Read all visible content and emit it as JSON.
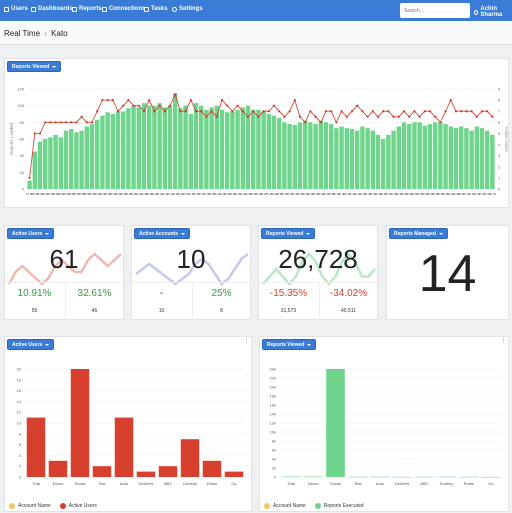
{
  "nav": {
    "items": [
      {
        "label": "Users",
        "icon": "users-icon"
      },
      {
        "label": "Dashboards",
        "icon": "dashboard-icon"
      },
      {
        "label": "Reports",
        "icon": "reports-icon"
      },
      {
        "label": "Connections",
        "icon": "connections-icon"
      },
      {
        "label": "Tasks",
        "icon": "tasks-icon"
      },
      {
        "label": "Settings",
        "icon": "gear-icon"
      }
    ],
    "search_placeholder": "Search...",
    "user_name": "Achin Sharma"
  },
  "breadcrumb": {
    "root": "Real Time",
    "separator": "›",
    "current": "Kato"
  },
  "colors": {
    "accent": "#3a7bd5",
    "green": "#6fd48c",
    "red": "#d7402f",
    "line_red": "#d23a2a"
  },
  "top_panel": {
    "button": "Reports Viewed",
    "chart_data": {
      "type": "bar",
      "ylabel_left": "Reports Loaded",
      "ylabel_right": "Active Users",
      "ylim_left": [
        0,
        120
      ],
      "left_ticks": [
        "120",
        "100",
        "80",
        "60",
        "40",
        "20",
        "0"
      ],
      "ylim_right": [
        0,
        9
      ],
      "right_ticks": [
        "9",
        "8",
        "7",
        "6",
        "5",
        "4",
        "3",
        "2",
        "1",
        "0"
      ],
      "categories": [
        "15:50",
        "15:51",
        "15:51",
        "15:52",
        "15:53",
        "15:54",
        "15:55",
        "15:55",
        "15:56",
        "15:57",
        "15:58",
        "15:58",
        "15:59",
        "16:00",
        "16:01",
        "16:02",
        "16:03",
        "16:04",
        "16:05",
        "16:05",
        "16:06",
        "16:07",
        "16:08",
        "16:09",
        "16:09",
        "16:10",
        "16:11",
        "16:12",
        "16:13",
        "16:14",
        "16:15",
        "16:15",
        "16:16",
        "16:17",
        "16:18",
        "16:19",
        "16:20",
        "16:20",
        "16:21",
        "16:22",
        "16:23",
        "16:24",
        "16:25",
        "16:25",
        "16:26",
        "16:27",
        "16:28",
        "16:29",
        "16:30",
        "16:30",
        "16:31",
        "16:32",
        "16:33",
        "16:34",
        "16:35",
        "16:35",
        "16:36",
        "16:37",
        "16:38",
        "16:39",
        "16:40",
        "16:40",
        "16:41",
        "16:42",
        "16:43",
        "16:44",
        "16:45",
        "16:45",
        "16:46",
        "16:47",
        "16:48",
        "16:49",
        "16:50",
        "16:50",
        "16:51",
        "16:52",
        "16:53",
        "16:54",
        "16:55",
        "16:55",
        "16:56",
        "16:57",
        "16:58",
        "16:59",
        "17:00",
        "17:00",
        "17:01",
        "17:02",
        "17:03",
        "17:04"
      ],
      "series": [
        {
          "name": "Reports Loaded",
          "kind": "bar",
          "values": [
            10,
            45,
            57,
            60,
            62,
            65,
            62,
            70,
            72,
            68,
            70,
            75,
            78,
            83,
            88,
            92,
            90,
            93,
            93,
            97,
            100,
            98,
            103,
            100,
            100,
            103,
            98,
            100,
            115,
            97,
            100,
            90,
            103,
            100,
            95,
            98,
            100,
            95,
            92,
            93,
            95,
            98,
            100,
            95,
            95,
            93,
            90,
            88,
            85,
            80,
            78,
            77,
            80,
            82,
            80,
            78,
            82,
            80,
            78,
            73,
            75,
            73,
            72,
            70,
            75,
            73,
            70,
            65,
            60,
            65,
            70,
            75,
            80,
            78,
            80,
            80,
            76,
            78,
            80,
            80,
            78,
            75,
            73,
            75,
            73,
            70,
            75,
            73,
            70,
            65
          ]
        },
        {
          "name": "Active Users",
          "kind": "line",
          "values": [
            1,
            5,
            5,
            6,
            6,
            6,
            6,
            6,
            6,
            6,
            6.5,
            6,
            6,
            7,
            8,
            8,
            8,
            7,
            7.5,
            8,
            7.5,
            7.5,
            7,
            8,
            7,
            7.5,
            7,
            7.5,
            8.5,
            7,
            7,
            8,
            7,
            7,
            6.5,
            7,
            6.5,
            8,
            7.5,
            7,
            7.5,
            7,
            6.5,
            7,
            6.5,
            7,
            7,
            7.5,
            7,
            6.5,
            7,
            8,
            6.5,
            6,
            7,
            6.5,
            6,
            7,
            7,
            6,
            7,
            6.5,
            7,
            7.5,
            7,
            6.5,
            7,
            6.5,
            7,
            7,
            6.5,
            6.5,
            7,
            6.5,
            7,
            6.5,
            7,
            7,
            6.5,
            6,
            7,
            8,
            7,
            7,
            7,
            7,
            6.5,
            7,
            7,
            6.5
          ]
        }
      ]
    }
  },
  "kpis": [
    {
      "button": "Active Users",
      "value": "61",
      "left_pct": "10.91%",
      "right_pct": "32.61%",
      "left_sub": "55",
      "right_sub": "46",
      "left_color": "#3c9a4e",
      "right_color": "#3c9a4e",
      "spark_color": "#f2b7b0",
      "spark": [
        3,
        5,
        6,
        5,
        4,
        3,
        4,
        6,
        7,
        6,
        5,
        5,
        7,
        8,
        7,
        6,
        7,
        8
      ]
    },
    {
      "button": "Active Accounts",
      "value": "10",
      "left_pct": "-",
      "right_pct": "25%",
      "left_sub": "10",
      "right_sub": "8",
      "left_color": "#333333",
      "right_color": "#3c9a4e",
      "spark_color": "#c6c8f2",
      "spark": [
        5,
        6,
        7,
        6,
        5,
        4,
        3,
        4,
        5,
        7,
        8,
        7,
        5,
        3,
        4,
        6,
        8,
        9
      ]
    },
    {
      "button": "Reports Viewed",
      "value": "26,728",
      "left_pct": "-15.35%",
      "right_pct": "-34.02%",
      "left_sub": "31,573",
      "right_sub": "40,511",
      "left_color": "#d7402f",
      "right_color": "#d7402f",
      "spark_color": "#b8e8c5",
      "spark": [
        4,
        5,
        6,
        5,
        4,
        5,
        7,
        8,
        7,
        5,
        4,
        5,
        7,
        8,
        7,
        5,
        5,
        6
      ]
    },
    {
      "button": "Reports Managed",
      "value": "14"
    }
  ],
  "bottom_left": {
    "button": "Active Users",
    "chart_data": {
      "type": "bar",
      "categories": [
        "Trial",
        "Demo",
        "Social",
        "Test",
        "Auto",
        "Delivery",
        "ABC",
        "Dummy",
        "Roles",
        "Go"
      ],
      "series": [
        {
          "name": "Active Users",
          "values": [
            11,
            3,
            20,
            2,
            11,
            1,
            2,
            7,
            3,
            1
          ]
        }
      ],
      "ylim": [
        0,
        20
      ],
      "ticks": [
        "20",
        "18",
        "16",
        "14",
        "12",
        "10",
        "8",
        "6",
        "4",
        "2",
        "0"
      ],
      "legend": [
        "Account Name",
        "Active Users"
      ]
    }
  },
  "bottom_right": {
    "button": "Reports Viewed",
    "chart_data": {
      "type": "bar",
      "categories": [
        "Trial",
        "Demo",
        "Social",
        "Test",
        "Auto",
        "Delivery",
        "ABC",
        "Dummy",
        "Roles",
        "Go"
      ],
      "series": [
        {
          "name": "Reports Executed",
          "values": [
            100,
            80,
            24000,
            50,
            60,
            30,
            40,
            70,
            40,
            20
          ]
        }
      ],
      "ylim": [
        0,
        24000
      ],
      "ticks": [
        "24k",
        "22k",
        "20k",
        "18k",
        "16k",
        "14k",
        "12k",
        "10k",
        "8k",
        "6k",
        "4k",
        "2k",
        "0"
      ],
      "legend": [
        "Account Name",
        "Reports Executed"
      ]
    }
  }
}
